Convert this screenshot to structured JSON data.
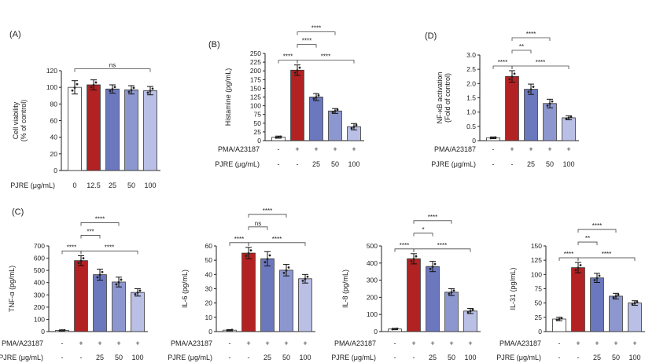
{
  "chart_data": [
    {
      "panel": "(A)",
      "type": "bar",
      "ylabel": "Cell viability\n(% of control)",
      "ylim": [
        0,
        120
      ],
      "yticks": [
        0,
        20,
        40,
        60,
        80,
        100,
        120
      ],
      "row_labels": [
        "PJRE (μg/mL)"
      ],
      "rows": [
        [
          "0",
          "12.5",
          "25",
          "50",
          "100"
        ]
      ],
      "values": [
        100,
        103,
        98,
        97,
        96
      ],
      "errors": [
        8,
        6,
        5,
        5,
        5
      ],
      "colors": [
        "#ffffff",
        "#b22222",
        "#6b78bd",
        "#8d97cf",
        "#b9bfe5"
      ],
      "comparisons": [
        {
          "from": 0,
          "to": 4,
          "label": "ns"
        }
      ]
    },
    {
      "panel": "(B)",
      "type": "bar",
      "ylabel": "Histamine (pg/mL)",
      "ylim": [
        0,
        250
      ],
      "yticks": [
        0,
        25,
        50,
        75,
        100,
        125,
        150,
        175,
        200,
        225,
        250
      ],
      "row_labels": [
        "PMA/A23187",
        "PJRE (μg/mL)"
      ],
      "rows": [
        [
          "-",
          "+",
          "+",
          "+",
          "+"
        ],
        [
          "-",
          "-",
          "25",
          "50",
          "100"
        ]
      ],
      "values": [
        10,
        202,
        125,
        85,
        40
      ],
      "errors": [
        3,
        15,
        10,
        7,
        9
      ],
      "colors": [
        "#ffffff",
        "#b22222",
        "#6b78bd",
        "#8d97cf",
        "#b9bfe5"
      ],
      "comparisons": [
        {
          "from": 0,
          "to": 1,
          "label": "****"
        },
        {
          "from": 1,
          "to": 2,
          "label": "****"
        },
        {
          "from": 1,
          "to": 3,
          "label": "****"
        },
        {
          "from": 1,
          "to": 4,
          "label": "****"
        }
      ]
    },
    {
      "panel": "(D)",
      "type": "bar",
      "ylabel": "NF-κB activation\n(Fold of control)",
      "ylim": [
        0,
        3.0
      ],
      "yticks": [
        0,
        0.5,
        1.0,
        1.5,
        2.0,
        2.5,
        3.0
      ],
      "tick_labels": [
        "0",
        "0.5",
        "1.0",
        "1.5",
        "2.0",
        "2.5",
        "3.0"
      ],
      "row_labels": [
        "PMA/A23187",
        "PJRE (μg/mL)"
      ],
      "rows": [
        [
          "-",
          "+",
          "+",
          "+",
          "+"
        ],
        [
          "-",
          "-",
          "25",
          "50",
          "100"
        ]
      ],
      "values": [
        0.1,
        2.25,
        1.8,
        1.3,
        0.8
      ],
      "errors": [
        0.03,
        0.2,
        0.18,
        0.15,
        0.07
      ],
      "colors": [
        "#ffffff",
        "#b22222",
        "#6b78bd",
        "#8d97cf",
        "#b9bfe5"
      ],
      "comparisons": [
        {
          "from": 0,
          "to": 1,
          "label": "****"
        },
        {
          "from": 1,
          "to": 2,
          "label": "**"
        },
        {
          "from": 1,
          "to": 3,
          "label": "****"
        },
        {
          "from": 1,
          "to": 4,
          "label": "****"
        }
      ]
    },
    {
      "panel": "(C)",
      "type": "bar",
      "ylabel": "TNF-α (pg/mL)",
      "ylim": [
        0,
        700
      ],
      "yticks": [
        0,
        100,
        200,
        300,
        400,
        500,
        600,
        700
      ],
      "row_labels": [
        "PMA/A23187",
        "PJRE (μg/mL)"
      ],
      "rows": [
        [
          "-",
          "+",
          "+",
          "+",
          "+"
        ],
        [
          "-",
          "-",
          "25",
          "50",
          "100"
        ]
      ],
      "values": [
        10,
        580,
        465,
        405,
        320
      ],
      "errors": [
        4,
        40,
        45,
        40,
        30
      ],
      "colors": [
        "#ffffff",
        "#b22222",
        "#6b78bd",
        "#8d97cf",
        "#b9bfe5"
      ],
      "comparisons": [
        {
          "from": 0,
          "to": 1,
          "label": "****"
        },
        {
          "from": 1,
          "to": 2,
          "label": "***"
        },
        {
          "from": 1,
          "to": 3,
          "label": "****"
        },
        {
          "from": 1,
          "to": 4,
          "label": "****"
        }
      ]
    },
    {
      "panel": "",
      "type": "bar",
      "ylabel": "IL-6 (pg/mL)",
      "ylim": [
        0,
        60
      ],
      "yticks": [
        0,
        10,
        20,
        30,
        40,
        50,
        60
      ],
      "row_labels": [
        "PMA/A23187",
        "PJRE (μg/mL)"
      ],
      "rows": [
        [
          "-",
          "+",
          "+",
          "+",
          "+"
        ],
        [
          "-",
          "-",
          "25",
          "50",
          "100"
        ]
      ],
      "values": [
        1,
        55,
        51,
        43,
        37
      ],
      "errors": [
        0.4,
        4,
        5,
        4,
        3
      ],
      "colors": [
        "#ffffff",
        "#b22222",
        "#6b78bd",
        "#8d97cf",
        "#b9bfe5"
      ],
      "comparisons": [
        {
          "from": 0,
          "to": 1,
          "label": "****"
        },
        {
          "from": 1,
          "to": 2,
          "label": "ns"
        },
        {
          "from": 1,
          "to": 3,
          "label": "****"
        },
        {
          "from": 1,
          "to": 4,
          "label": "****"
        }
      ]
    },
    {
      "panel": "",
      "type": "bar",
      "ylabel": "IL-8 (pg/mL)",
      "ylim": [
        0,
        500
      ],
      "yticks": [
        0,
        100,
        200,
        300,
        400,
        500
      ],
      "row_labels": [
        "PMA/A23187",
        "PJRE (μg/mL)"
      ],
      "rows": [
        [
          "-",
          "+",
          "+",
          "+",
          "+"
        ],
        [
          "-",
          "-",
          "25",
          "50",
          "100"
        ]
      ],
      "values": [
        15,
        425,
        380,
        230,
        120
      ],
      "errors": [
        4,
        30,
        30,
        20,
        15
      ],
      "colors": [
        "#ffffff",
        "#b22222",
        "#6b78bd",
        "#8d97cf",
        "#b9bfe5"
      ],
      "comparisons": [
        {
          "from": 0,
          "to": 1,
          "label": "****"
        },
        {
          "from": 1,
          "to": 2,
          "label": "*"
        },
        {
          "from": 1,
          "to": 3,
          "label": "****"
        },
        {
          "from": 1,
          "to": 4,
          "label": "****"
        }
      ]
    },
    {
      "panel": "",
      "type": "bar",
      "ylabel": "IL-31 (pg/mL)",
      "ylim": [
        0,
        150
      ],
      "yticks": [
        0,
        25,
        50,
        75,
        100,
        125,
        150
      ],
      "row_labels": [
        "PMA/A23187",
        "PJRE (μg/mL)"
      ],
      "rows": [
        [
          "-",
          "+",
          "+",
          "+",
          "+"
        ],
        [
          "-",
          "-",
          "25",
          "50",
          "100"
        ]
      ],
      "values": [
        22,
        112,
        94,
        62,
        50
      ],
      "errors": [
        3,
        9,
        8,
        5,
        4
      ],
      "colors": [
        "#ffffff",
        "#b22222",
        "#6b78bd",
        "#8d97cf",
        "#b9bfe5"
      ],
      "comparisons": [
        {
          "from": 0,
          "to": 1,
          "label": "****"
        },
        {
          "from": 1,
          "to": 2,
          "label": "**"
        },
        {
          "from": 1,
          "to": 3,
          "label": "****"
        },
        {
          "from": 1,
          "to": 4,
          "label": "****"
        }
      ]
    }
  ]
}
